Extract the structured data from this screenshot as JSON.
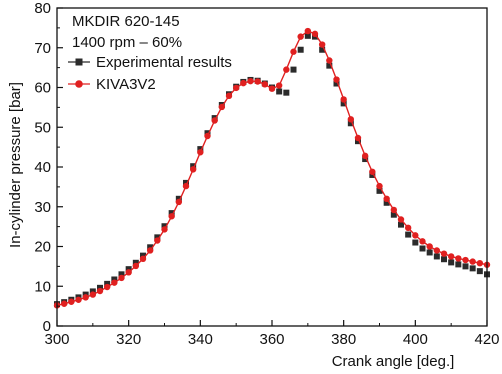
{
  "chart_data": {
    "type": "scatter",
    "annotations": [
      "MKDIR 620-145",
      "1400 rpm – 60%"
    ],
    "xlabel": "Crank angle [deg.]",
    "ylabel": "In-cylinder pressure [bar]",
    "xlim": [
      300,
      420
    ],
    "ylim": [
      0,
      80
    ],
    "xticks": [
      300,
      320,
      340,
      360,
      380,
      400,
      420
    ],
    "yticks": [
      0,
      10,
      20,
      30,
      40,
      50,
      60,
      70,
      80
    ],
    "grid": false,
    "legend_position": "top-left",
    "series": [
      {
        "name": "Experimental results",
        "marker": "square",
        "color": "#2b2b2b",
        "x": [
          300,
          302,
          304,
          306,
          308,
          310,
          312,
          314,
          316,
          318,
          320,
          322,
          324,
          326,
          328,
          330,
          332,
          334,
          336,
          338,
          340,
          342,
          344,
          346,
          348,
          350,
          352,
          354,
          356,
          358,
          360,
          362,
          364,
          366,
          368,
          370,
          372,
          374,
          376,
          378,
          380,
          382,
          384,
          386,
          388,
          390,
          392,
          394,
          396,
          398,
          400,
          402,
          404,
          406,
          408,
          410,
          412,
          414,
          416,
          418,
          420
        ],
        "y": [
          5.5,
          6.0,
          6.6,
          7.2,
          7.9,
          8.7,
          9.6,
          10.6,
          11.7,
          13.0,
          14.3,
          15.9,
          17.7,
          19.8,
          22.3,
          25.1,
          28.4,
          32.0,
          36.0,
          40.2,
          44.5,
          48.5,
          52.3,
          55.6,
          58.3,
          60.2,
          61.4,
          61.9,
          61.7,
          61.0,
          60.0,
          59.0,
          58.7,
          64.5,
          69.5,
          73.0,
          72.8,
          69.5,
          65.5,
          61.0,
          56.0,
          51.0,
          46.5,
          42.0,
          38.0,
          34.0,
          31.0,
          28.0,
          25.5,
          23.0,
          21.0,
          19.5,
          18.5,
          17.5,
          16.8,
          16.0,
          15.5,
          15.0,
          14.5,
          13.8,
          13.0
        ]
      },
      {
        "name": "KIVA3V2",
        "marker": "circle",
        "color": "#e02020",
        "x": [
          300,
          302,
          304,
          306,
          308,
          310,
          312,
          314,
          316,
          318,
          320,
          322,
          324,
          326,
          328,
          330,
          332,
          334,
          336,
          338,
          340,
          342,
          344,
          346,
          348,
          350,
          352,
          354,
          356,
          358,
          360,
          362,
          364,
          366,
          368,
          370,
          372,
          374,
          376,
          378,
          380,
          382,
          384,
          386,
          388,
          390,
          392,
          394,
          396,
          398,
          400,
          402,
          404,
          406,
          408,
          410,
          412,
          414,
          416,
          418,
          420
        ],
        "y": [
          5.2,
          5.6,
          6.1,
          6.6,
          7.2,
          7.9,
          8.8,
          9.8,
          10.9,
          12.1,
          13.5,
          15.1,
          16.9,
          19.0,
          21.5,
          24.3,
          27.6,
          31.2,
          35.2,
          39.4,
          43.7,
          47.8,
          51.7,
          55.1,
          57.9,
          59.9,
          61.1,
          61.6,
          61.5,
          60.8,
          59.7,
          60.5,
          64.5,
          69.0,
          72.8,
          74.2,
          73.5,
          70.8,
          66.8,
          62.0,
          57.0,
          52.0,
          47.3,
          42.8,
          38.8,
          35.2,
          32.0,
          29.2,
          26.8,
          24.7,
          22.8,
          21.3,
          20.0,
          19.0,
          18.2,
          17.5,
          17.0,
          16.6,
          16.2,
          15.8,
          15.4
        ]
      }
    ]
  }
}
